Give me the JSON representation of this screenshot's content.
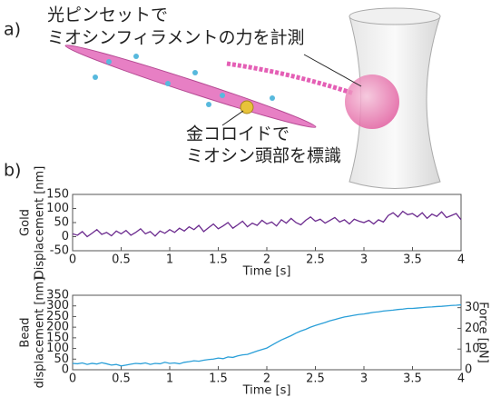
{
  "panel_a": {
    "label": "a)",
    "note1": [
      "光ピンセットで",
      "ミオシンフィラメントの力を計測"
    ],
    "note2": [
      "金コロイドで",
      "ミオシン頭部を標識"
    ]
  },
  "panel_b": {
    "label": "b)"
  },
  "chart_data": [
    {
      "type": "line",
      "ylabel": [
        "Gold",
        "Displacement [nm]"
      ],
      "xlabel": "Time [s]",
      "xlim": [
        0,
        4
      ],
      "xticks": [
        0,
        0.5,
        1,
        1.5,
        2,
        2.5,
        3,
        3.5,
        4
      ],
      "ylim": [
        -50,
        150
      ],
      "yticks": [
        -50,
        0,
        50,
        100,
        150
      ],
      "x": [
        0,
        0.05,
        0.1,
        0.15,
        0.2,
        0.25,
        0.3,
        0.35,
        0.4,
        0.45,
        0.5,
        0.55,
        0.6,
        0.65,
        0.7,
        0.75,
        0.8,
        0.85,
        0.9,
        0.95,
        1,
        1.05,
        1.1,
        1.15,
        1.2,
        1.25,
        1.3,
        1.35,
        1.4,
        1.45,
        1.5,
        1.55,
        1.6,
        1.65,
        1.7,
        1.75,
        1.8,
        1.85,
        1.9,
        1.95,
        2,
        2.05,
        2.1,
        2.15,
        2.2,
        2.25,
        2.3,
        2.35,
        2.4,
        2.45,
        2.5,
        2.55,
        2.6,
        2.65,
        2.7,
        2.75,
        2.8,
        2.85,
        2.9,
        2.95,
        3,
        3.05,
        3.1,
        3.15,
        3.2,
        3.25,
        3.3,
        3.35,
        3.4,
        3.45,
        3.5,
        3.55,
        3.6,
        3.65,
        3.7,
        3.75,
        3.8,
        3.85,
        3.9,
        3.95,
        4
      ],
      "series": [
        {
          "color": "#6b2a8e",
          "values": [
            10,
            5,
            18,
            0,
            12,
            25,
            8,
            15,
            3,
            20,
            10,
            22,
            5,
            15,
            28,
            10,
            18,
            2,
            20,
            12,
            25,
            15,
            30,
            20,
            35,
            25,
            40,
            18,
            32,
            45,
            28,
            38,
            50,
            30,
            42,
            55,
            35,
            48,
            40,
            58,
            45,
            52,
            38,
            60,
            48,
            65,
            50,
            42,
            58,
            70,
            55,
            62,
            48,
            58,
            68,
            52,
            60,
            45,
            62,
            55,
            50,
            58,
            45,
            60,
            52,
            75,
            85,
            70,
            90,
            78,
            82,
            70,
            85,
            65,
            80,
            72,
            88,
            68,
            75,
            82,
            60
          ]
        }
      ]
    },
    {
      "type": "line",
      "ylabel": [
        "Bead",
        "displacement [nm]"
      ],
      "xlabel": "Time [s]",
      "y2label": "Force [pN]",
      "xlim": [
        0,
        4
      ],
      "xticks": [
        0,
        0.5,
        1,
        1.5,
        2,
        2.5,
        3,
        3.5,
        4
      ],
      "ylim": [
        0,
        350
      ],
      "yticks": [
        0,
        50,
        100,
        150,
        200,
        250,
        300,
        350
      ],
      "y2lim": [
        0,
        36
      ],
      "y2ticks": [
        0,
        10,
        20,
        30
      ],
      "x": [
        0,
        0.05,
        0.1,
        0.15,
        0.2,
        0.25,
        0.3,
        0.35,
        0.4,
        0.45,
        0.5,
        0.55,
        0.6,
        0.65,
        0.7,
        0.75,
        0.8,
        0.85,
        0.9,
        0.95,
        1,
        1.05,
        1.1,
        1.15,
        1.2,
        1.25,
        1.3,
        1.35,
        1.4,
        1.45,
        1.5,
        1.55,
        1.6,
        1.65,
        1.7,
        1.75,
        1.8,
        1.85,
        1.9,
        1.95,
        2,
        2.05,
        2.1,
        2.15,
        2.2,
        2.25,
        2.3,
        2.35,
        2.4,
        2.45,
        2.5,
        2.55,
        2.6,
        2.65,
        2.7,
        2.75,
        2.8,
        2.85,
        2.9,
        2.95,
        3,
        3.05,
        3.1,
        3.15,
        3.2,
        3.25,
        3.3,
        3.35,
        3.4,
        3.45,
        3.5,
        3.55,
        3.6,
        3.65,
        3.7,
        3.75,
        3.8,
        3.85,
        3.9,
        3.95,
        4
      ],
      "series": [
        {
          "color": "#2a9fd8",
          "values": [
            30,
            28,
            32,
            25,
            30,
            27,
            33,
            28,
            22,
            25,
            18,
            22,
            26,
            30,
            28,
            32,
            25,
            30,
            28,
            35,
            30,
            32,
            28,
            35,
            38,
            42,
            40,
            45,
            48,
            50,
            55,
            52,
            60,
            58,
            65,
            70,
            72,
            80,
            88,
            95,
            102,
            115,
            128,
            140,
            150,
            160,
            172,
            182,
            190,
            200,
            208,
            215,
            222,
            230,
            236,
            242,
            248,
            252,
            256,
            260,
            262,
            266,
            270,
            272,
            276,
            278,
            280,
            283,
            285,
            288,
            288,
            290,
            292,
            294,
            295,
            297,
            298,
            300,
            302,
            303,
            305
          ]
        }
      ]
    }
  ]
}
